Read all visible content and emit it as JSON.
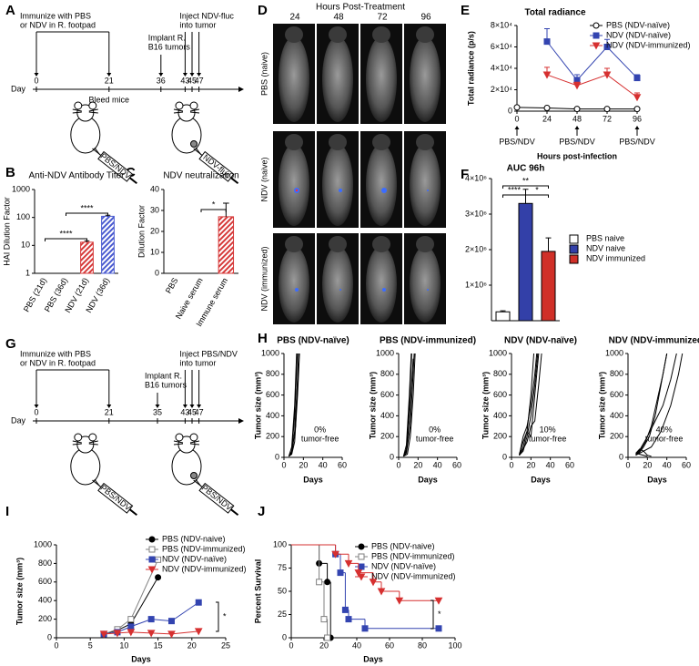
{
  "panel_labels": [
    "A",
    "B",
    "C",
    "D",
    "E",
    "F",
    "G",
    "H",
    "I",
    "J"
  ],
  "timeline_a": {
    "immunize": [
      "Immunize with PBS",
      "or NDV in R. footpad"
    ],
    "implant": [
      "Implant R.",
      "B16 tumors"
    ],
    "inject": [
      "Inject NDV-fluc",
      "into tumor"
    ],
    "day_label": "Day",
    "days": [
      0,
      21,
      36,
      43,
      45,
      47
    ],
    "bleed": "Bleed mice",
    "syringe_labels": [
      "PBS/NDV",
      "NDV-fluc"
    ]
  },
  "timeline_g": {
    "immunize": [
      "Immunize with PBS",
      "or NDV in R. footpad"
    ],
    "implant": [
      "Implant R.",
      "B16 tumors"
    ],
    "inject": [
      "Inject PBS/NDV",
      "into tumor"
    ],
    "day_label": "Day",
    "days": [
      0,
      21,
      35,
      43,
      45,
      47
    ],
    "syringe_labels": [
      "PBS/NDV",
      "PBS/NDV"
    ]
  },
  "panel_d": {
    "title": "Hours Post-Treatment",
    "columns": [
      "24",
      "48",
      "72",
      "96"
    ],
    "rows": [
      "PBS (naive)",
      "NDV (naive)",
      "NDV (immunized)"
    ]
  },
  "chart_data": [
    {
      "type": "bar",
      "title": "Anti-NDV Antibody Titer",
      "ylabel": "HAI Dilution Factor",
      "categories": [
        "PBS (21d)",
        "PBS (36d)",
        "NDV (21d)",
        "NDV (36d)"
      ],
      "values": [
        1,
        1,
        13,
        110
      ],
      "errors": [
        null,
        null,
        1.5,
        10
      ],
      "colors": [
        "#d63a3a",
        "#4a5bd0",
        "#d63a3a",
        "#4a5bd0"
      ],
      "hatch": true,
      "log_scale": true,
      "ylim": [
        1,
        1000
      ],
      "yticks": [
        1,
        10,
        100,
        1000
      ],
      "significance": [
        "****",
        "****"
      ]
    },
    {
      "type": "bar",
      "title": "NDV neutralization",
      "ylabel": "Dilution Factor",
      "categories": [
        "PBS",
        "Naive serum",
        "Immune serum"
      ],
      "values": [
        0,
        0,
        27
      ],
      "errors": [
        null,
        null,
        6.5
      ],
      "colors": [
        "#d63a3a",
        "#d63a3a",
        "#d63a3a"
      ],
      "hatch": true,
      "ylim": [
        0,
        40
      ],
      "yticks": [
        0,
        10,
        20,
        30,
        40
      ],
      "significance": [
        "*"
      ]
    },
    {
      "type": "line",
      "title": "Total radiance",
      "ylabel": "Total radiance (p/s)",
      "xlabel": "Hours post-infection",
      "x": [
        0,
        24,
        48,
        72,
        96
      ],
      "xlim": [
        0,
        96
      ],
      "xticks": [
        0,
        24,
        48,
        72,
        96
      ],
      "ylim": [
        0,
        80000
      ],
      "yticks": [
        0,
        {
          "value": 20000,
          "label": "2×10⁴"
        },
        {
          "value": 40000,
          "label": "4×10⁴"
        },
        {
          "value": 60000,
          "label": "6×10⁴"
        },
        {
          "value": 80000,
          "label": "8×10⁴"
        }
      ],
      "series": [
        {
          "name": "PBS (NDV-naïve)",
          "color": "#000000",
          "marker": "circle",
          "filled": false,
          "values": [
            3500,
            3000,
            2000,
            2000,
            2000
          ]
        },
        {
          "name": "NDV (NDV-naïve)",
          "color": "#3344b0",
          "marker": "square",
          "values": [
            null,
            65000,
            29000,
            60000,
            31000
          ],
          "errors": [
            null,
            12000,
            5000,
            7000,
            3000
          ]
        },
        {
          "name": "NDV (NDV-immunized)",
          "color": "#d63030",
          "marker": "triangle-down",
          "values": [
            null,
            34000,
            24000,
            34000,
            13000
          ],
          "errors": [
            null,
            7000,
            3000,
            6000,
            4000
          ]
        }
      ],
      "arrows": [
        {
          "x": 0,
          "label": "PBS/NDV"
        },
        {
          "x": 48,
          "label": "PBS/NDV"
        },
        {
          "x": 96,
          "label": "PBS/NDV"
        }
      ],
      "legend": "top-right"
    },
    {
      "type": "bar",
      "title": "AUC 96h",
      "categories": [
        "PBS naive",
        "NDV naive",
        "NDV immunized"
      ],
      "values": [
        250000,
        3300000,
        1950000
      ],
      "errors": [
        30000,
        400000,
        380000
      ],
      "colors": [
        "#ffffff",
        "#3340a8",
        "#d03028"
      ],
      "ylim": [
        0,
        4000000
      ],
      "yticks": [
        {
          "value": 1000000,
          "label": "1×10⁶"
        },
        {
          "value": 2000000,
          "label": "2×10⁶"
        },
        {
          "value": 3000000,
          "label": "3×10⁶"
        },
        {
          "value": 4000000,
          "label": "4×10⁶"
        }
      ],
      "significance": [
        "**",
        "****",
        "*"
      ],
      "legend": "right"
    },
    {
      "type": "line",
      "title": "PBS (NDV-naïve)",
      "ylabel": "Tumor size (mm³)",
      "xlabel": "Days",
      "color": "#000000",
      "xlim": [
        0,
        60
      ],
      "xticks": [
        0,
        20,
        40,
        60
      ],
      "ylim": [
        0,
        1000
      ],
      "yticks": [
        0,
        200,
        400,
        600,
        800,
        1000
      ],
      "annotation": [
        "0%",
        "tumor-free"
      ],
      "series": [
        {
          "x": [
            5,
            8,
            11,
            14
          ],
          "values": [
            10,
            60,
            400,
            1050
          ]
        },
        {
          "x": [
            5,
            8,
            11,
            13
          ],
          "values": [
            10,
            100,
            500,
            1000
          ]
        },
        {
          "x": [
            5,
            8,
            11,
            15
          ],
          "values": [
            10,
            50,
            250,
            900
          ]
        },
        {
          "x": [
            5,
            8,
            12,
            15
          ],
          "values": [
            10,
            40,
            300,
            1000
          ]
        },
        {
          "x": [
            5,
            8,
            11,
            14,
            16
          ],
          "values": [
            10,
            30,
            150,
            600,
            1000
          ]
        }
      ]
    },
    {
      "type": "line",
      "title": "PBS (NDV-immunized)",
      "ylabel": "Tumor size (mm³)",
      "xlabel": "Days",
      "color": "#000000",
      "xlim": [
        0,
        60
      ],
      "xticks": [
        0,
        20,
        40,
        60
      ],
      "ylim": [
        0,
        1000
      ],
      "yticks": [
        0,
        200,
        400,
        600,
        800,
        1000
      ],
      "annotation": [
        "0%",
        "tumor-free"
      ],
      "series": [
        {
          "x": [
            5,
            8,
            11,
            14
          ],
          "values": [
            10,
            80,
            500,
            1100
          ]
        },
        {
          "x": [
            5,
            8,
            11,
            13
          ],
          "values": [
            10,
            120,
            600,
            1000
          ]
        },
        {
          "x": [
            5,
            8,
            12,
            16
          ],
          "values": [
            10,
            40,
            300,
            1000
          ]
        },
        {
          "x": [
            5,
            8,
            11,
            15
          ],
          "values": [
            10,
            60,
            350,
            950
          ]
        },
        {
          "x": [
            5,
            9,
            12,
            15,
            17
          ],
          "values": [
            10,
            30,
            200,
            600,
            1000
          ]
        }
      ]
    },
    {
      "type": "line",
      "title": "NDV (NDV-naïve)",
      "ylabel": "Tumor size (mm³)",
      "xlabel": "Days",
      "color": "#000000",
      "xlim": [
        0,
        60
      ],
      "xticks": [
        0,
        20,
        40,
        60
      ],
      "ylim": [
        0,
        1000
      ],
      "yticks": [
        0,
        200,
        400,
        600,
        800,
        1000
      ],
      "annotation": [
        "10%",
        "tumor-free"
      ],
      "series": [
        {
          "x": [
            8,
            12,
            16,
            20,
            24,
            27
          ],
          "values": [
            20,
            60,
            200,
            400,
            700,
            1000
          ]
        },
        {
          "x": [
            8,
            12,
            16,
            20,
            23
          ],
          "values": [
            30,
            150,
            250,
            600,
            1000
          ]
        },
        {
          "x": [
            8,
            12,
            16,
            20,
            24,
            28,
            31
          ],
          "values": [
            20,
            80,
            150,
            300,
            350,
            700,
            1000
          ]
        },
        {
          "x": [
            8,
            12,
            16,
            20,
            24,
            26
          ],
          "values": [
            20,
            200,
            300,
            500,
            800,
            1000
          ]
        },
        {
          "x": [
            8,
            12,
            16,
            20,
            24,
            28
          ],
          "values": [
            20,
            100,
            250,
            200,
            600,
            1000
          ]
        }
      ]
    },
    {
      "type": "line",
      "title": "NDV (NDV-immunized)",
      "ylabel": "Tumor size (mm³)",
      "xlabel": "Days",
      "color": "#000000",
      "xlim": [
        0,
        60
      ],
      "xticks": [
        0,
        20,
        40,
        60
      ],
      "ylim": [
        0,
        1000
      ],
      "yticks": [
        0,
        200,
        400,
        600,
        800,
        1000
      ],
      "annotation": [
        "40%",
        "tumor-free"
      ],
      "series": [
        {
          "x": [
            8,
            12,
            16,
            20,
            24
          ],
          "values": [
            40,
            80,
            60,
            20,
            10
          ]
        },
        {
          "x": [
            8,
            12,
            16,
            22,
            28,
            34,
            40
          ],
          "values": [
            30,
            50,
            100,
            200,
            400,
            700,
            1000
          ]
        },
        {
          "x": [
            8,
            12,
            18,
            24,
            30,
            36,
            40
          ],
          "values": [
            20,
            60,
            150,
            300,
            550,
            800,
            1000
          ]
        },
        {
          "x": [
            8,
            12,
            20,
            28,
            36,
            44,
            50
          ],
          "values": [
            30,
            70,
            200,
            350,
            500,
            750,
            1000
          ]
        },
        {
          "x": [
            8,
            14,
            24,
            34,
            44,
            52,
            56
          ],
          "values": [
            20,
            50,
            100,
            250,
            500,
            800,
            1000
          ]
        },
        {
          "x": [
            8,
            12,
            16,
            20
          ],
          "values": [
            40,
            30,
            20,
            10
          ]
        }
      ]
    },
    {
      "type": "line",
      "ylabel": "Tumor size (mm³)",
      "xlabel": "Days",
      "xlim": [
        0,
        25
      ],
      "xticks": [
        0,
        5,
        10,
        15,
        20,
        25
      ],
      "ylim": [
        0,
        1000
      ],
      "yticks": [
        0,
        200,
        400,
        600,
        800,
        1000
      ],
      "series": [
        {
          "name": "PBS (NDV-naive)",
          "color": "#000000",
          "marker": "circle",
          "x": [
            7,
            9,
            11,
            15
          ],
          "values": [
            40,
            80,
            150,
            650
          ]
        },
        {
          "name": "PBS (NDV-immunized)",
          "color": "#808080",
          "marker": "square",
          "filled": false,
          "x": [
            7,
            9,
            11,
            15
          ],
          "values": [
            40,
            90,
            200,
            840
          ]
        },
        {
          "name": "NDV (NDV-naïve)",
          "color": "#3344b0",
          "marker": "square",
          "x": [
            7,
            9,
            11,
            14,
            17,
            21
          ],
          "values": [
            40,
            60,
            120,
            200,
            180,
            380
          ]
        },
        {
          "name": "NDV (NDV-immunized)",
          "color": "#d63030",
          "marker": "triangle-down",
          "x": [
            7,
            9,
            11,
            14,
            17,
            21
          ],
          "values": [
            40,
            50,
            60,
            50,
            40,
            70
          ]
        }
      ],
      "significance": [
        "*"
      ],
      "legend": "top-right"
    },
    {
      "type": "step",
      "ylabel": "Percent Survival",
      "xlabel": "Days",
      "xlim": [
        0,
        100
      ],
      "xticks": [
        0,
        20,
        40,
        60,
        80,
        100
      ],
      "ylim": [
        0,
        100
      ],
      "yticks": [
        0,
        25,
        50,
        75,
        100
      ],
      "series": [
        {
          "name": "PBS (NDV-naive)",
          "color": "#000000",
          "marker": "circle",
          "x": [
            0,
            17,
            22,
            24
          ],
          "values": [
            100,
            80,
            60,
            0
          ]
        },
        {
          "name": "PBS (NDV-immunized)",
          "color": "#808080",
          "marker": "square",
          "filled": false,
          "x": [
            0,
            17,
            20,
            22
          ],
          "values": [
            100,
            60,
            20,
            0
          ]
        },
        {
          "name": "NDV (NDV-naïve)",
          "color": "#3344b0",
          "marker": "square",
          "x": [
            0,
            27,
            30,
            33,
            35,
            45,
            90
          ],
          "values": [
            100,
            90,
            70,
            30,
            20,
            10,
            10
          ]
        },
        {
          "name": "NDV (NDV-immunized)",
          "color": "#d63030",
          "marker": "triangle-down",
          "x": [
            0,
            27,
            35,
            41,
            50,
            55,
            66,
            90
          ],
          "values": [
            100,
            90,
            80,
            70,
            60,
            50,
            40,
            40
          ]
        }
      ],
      "significance": [
        "*"
      ],
      "legend": "top-right"
    }
  ]
}
